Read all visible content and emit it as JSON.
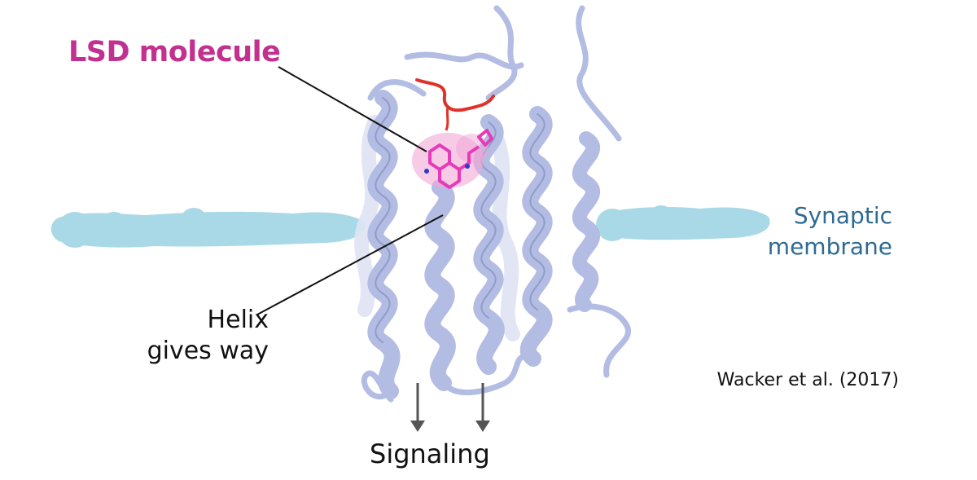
{
  "labels": {
    "lsd_molecule": "LSD molecule",
    "membrane_line1": "Synaptic",
    "membrane_line2": "membrane",
    "helix_line1": "Helix",
    "helix_line2": "gives way",
    "signaling": "Signaling",
    "citation": "Wacker et al. (2017)"
  },
  "colors": {
    "lsd_label": "#c2318f",
    "membrane_label": "#2e6a93",
    "membrane_band": "#a9d9e7",
    "protein_ribbon": "#b3bce3",
    "protein_outline": "#7b85b8",
    "loop": "#e0322b",
    "ligand": "#e63ab8",
    "arrow": "#555555"
  }
}
